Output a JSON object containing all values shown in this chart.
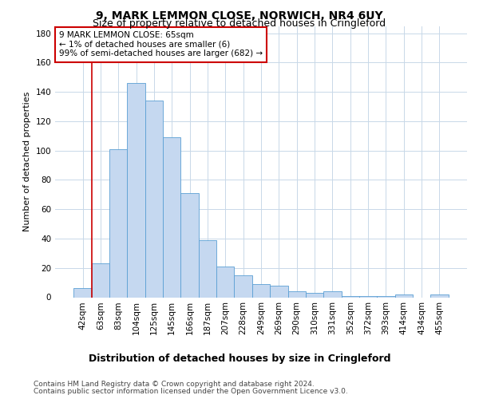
{
  "title": "9, MARK LEMMON CLOSE, NORWICH, NR4 6UY",
  "subtitle": "Size of property relative to detached houses in Cringleford",
  "xlabel": "Distribution of detached houses by size in Cringleford",
  "ylabel": "Number of detached properties",
  "categories": [
    "42sqm",
    "63sqm",
    "83sqm",
    "104sqm",
    "125sqm",
    "145sqm",
    "166sqm",
    "187sqm",
    "207sqm",
    "228sqm",
    "249sqm",
    "269sqm",
    "290sqm",
    "310sqm",
    "331sqm",
    "352sqm",
    "372sqm",
    "393sqm",
    "414sqm",
    "434sqm",
    "455sqm"
  ],
  "values": [
    6,
    23,
    101,
    146,
    134,
    109,
    71,
    39,
    21,
    15,
    9,
    8,
    4,
    3,
    4,
    1,
    1,
    1,
    2,
    0,
    2
  ],
  "bar_color": "#c5d8f0",
  "bar_edge_color": "#5a9fd4",
  "vline_color": "#cc0000",
  "vline_x_index": 1,
  "annotation_text": "9 MARK LEMMON CLOSE: 65sqm\n← 1% of detached houses are smaller (6)\n99% of semi-detached houses are larger (682) →",
  "annotation_box_color": "#ffffff",
  "annotation_box_edge": "#cc0000",
  "ylim": [
    0,
    185
  ],
  "yticks": [
    0,
    20,
    40,
    60,
    80,
    100,
    120,
    140,
    160,
    180
  ],
  "footer1": "Contains HM Land Registry data © Crown copyright and database right 2024.",
  "footer2": "Contains public sector information licensed under the Open Government Licence v3.0.",
  "bg_color": "#ffffff",
  "grid_color": "#c8d8e8",
  "title_fontsize": 10,
  "subtitle_fontsize": 9,
  "ylabel_fontsize": 8,
  "xlabel_fontsize": 9,
  "tick_fontsize": 7.5,
  "annotation_fontsize": 7.5,
  "footer_fontsize": 6.5
}
